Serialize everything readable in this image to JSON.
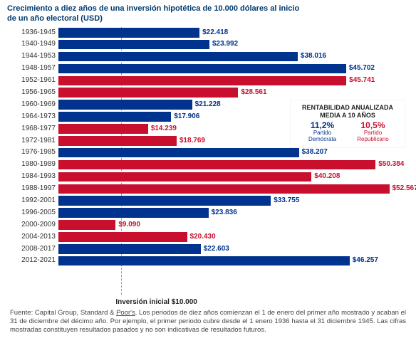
{
  "title_line1": "Crecimiento a diez años de una inversión hipotética de 10.000 dólares al inicio",
  "title_line2": "de un año electoral (USD)",
  "chart": {
    "type": "bar",
    "max_value": 55000,
    "label_color": "#333333",
    "dem_color": "#00338d",
    "rep_color": "#c8102e",
    "ref_value": 10000,
    "ref_label": "Inversión inicial $10.000",
    "rows": [
      {
        "period": "1936-1945",
        "value": 22418,
        "label": "$22.418",
        "party": "dem"
      },
      {
        "period": "1940-1949",
        "value": 23992,
        "label": "$23.992",
        "party": "dem"
      },
      {
        "period": "1944-1953",
        "value": 38016,
        "label": "$38.016",
        "party": "dem"
      },
      {
        "period": "1948-1957",
        "value": 45702,
        "label": "$45.702",
        "party": "dem"
      },
      {
        "period": "1952-1961",
        "value": 45741,
        "label": "$45.741",
        "party": "rep"
      },
      {
        "period": "1956-1965",
        "value": 28561,
        "label": "$28.561",
        "party": "rep"
      },
      {
        "period": "1960-1969",
        "value": 21228,
        "label": "$21.228",
        "party": "dem"
      },
      {
        "period": "1964-1973",
        "value": 17906,
        "label": "$17.906",
        "party": "dem"
      },
      {
        "period": "1968-1977",
        "value": 14239,
        "label": "$14.239",
        "party": "rep"
      },
      {
        "period": "1972-1981",
        "value": 18769,
        "label": "$18.769",
        "party": "rep"
      },
      {
        "period": "1976-1985",
        "value": 38207,
        "label": "$38.207",
        "party": "dem"
      },
      {
        "period": "1980-1989",
        "value": 50384,
        "label": "$50.384",
        "party": "rep"
      },
      {
        "period": "1984-1993",
        "value": 40208,
        "label": "$40.208",
        "party": "rep"
      },
      {
        "period": "1988-1997",
        "value": 52567,
        "label": "$52.567",
        "party": "rep"
      },
      {
        "period": "1992-2001",
        "value": 33755,
        "label": "$33.755",
        "party": "dem"
      },
      {
        "period": "1996-2005",
        "value": 23836,
        "label": "$23.836",
        "party": "dem"
      },
      {
        "period": "2000-2009",
        "value": 9090,
        "label": "$9.090",
        "party": "rep"
      },
      {
        "period": "2004-2013",
        "value": 20430,
        "label": "$20.430",
        "party": "rep"
      },
      {
        "period": "2008-2017",
        "value": 22603,
        "label": "$22.603",
        "party": "dem"
      },
      {
        "period": "2012-2021",
        "value": 46257,
        "label": "$46.257",
        "party": "dem"
      }
    ]
  },
  "inset": {
    "title_l1": "RENTABILIDAD ANUALIZADA",
    "title_l2": "MEDIA A 10 AÑOS",
    "dem_pct": "11,2%",
    "dem_label_l1": "Partido",
    "dem_label_l2": "Demócrata",
    "rep_pct": "10,5%",
    "rep_label_l1": "Partido",
    "rep_label_l2": "Republicano"
  },
  "footnote_prefix": "Fuente: Capital Group, Standard & ",
  "footnote_poor": "Poor's",
  "footnote_rest": ". Los periodos de diez años comienzan el 1 de enero del primer año mostrado y acaban el 31 de diciembre del décimo año. Por ejemplo, el primer periodo cubre desde el 1 enero 1936 hasta el 31 diciembre 1945. Las cifras mostradas constituyen resultados pasados y no son indicativas de resultados futuros."
}
